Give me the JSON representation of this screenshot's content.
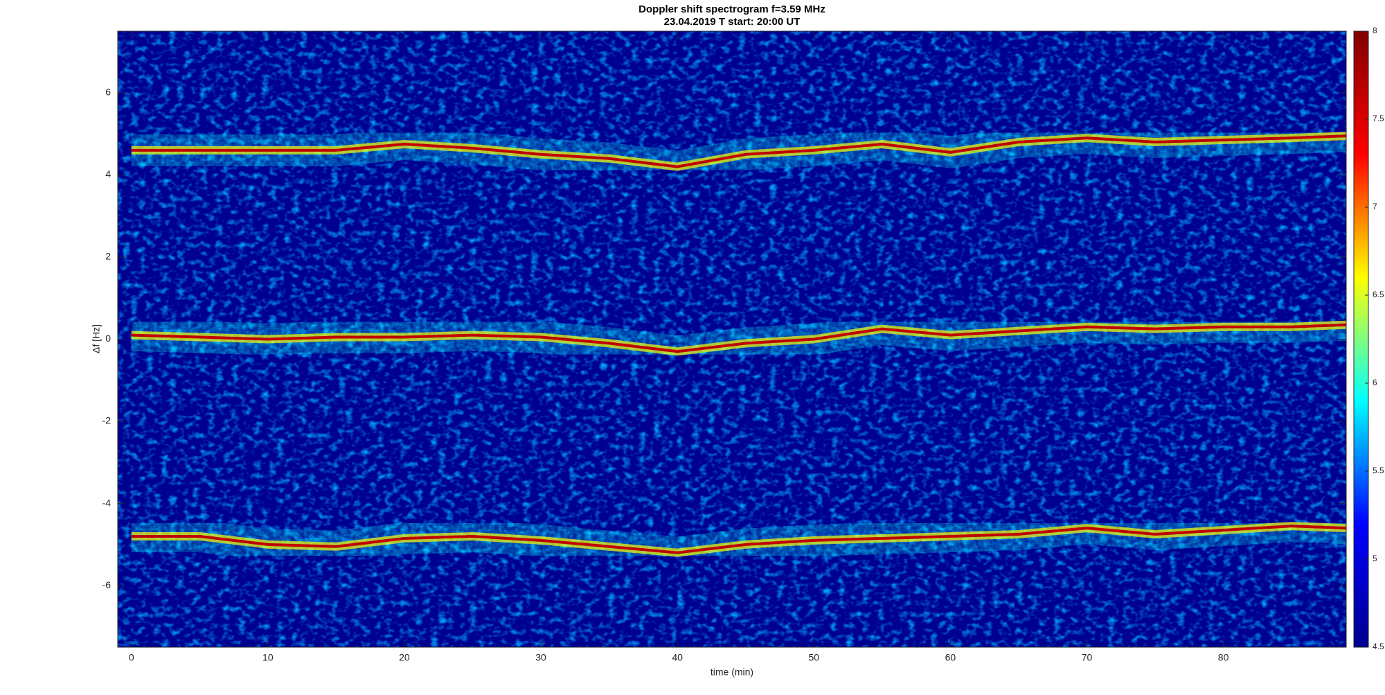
{
  "chart_data": {
    "type": "spectrogram",
    "title": "Doppler shift spectrogram f=3.59 MHz",
    "subtitle": "23.04.2019   T start: 20:00 UT",
    "x_label": "time (min)",
    "y_label": "Δf [Hz]",
    "x": [
      0,
      5,
      10,
      15,
      20,
      25,
      30,
      35,
      40,
      45,
      50,
      55,
      60,
      65,
      70,
      75,
      80,
      85,
      89
    ],
    "series": [
      {
        "name": "upper trace",
        "color": "#c00000",
        "values": [
          4.6,
          4.6,
          4.6,
          4.6,
          4.75,
          4.65,
          4.5,
          4.4,
          4.2,
          4.5,
          4.6,
          4.75,
          4.55,
          4.8,
          4.9,
          4.8,
          4.85,
          4.9,
          4.95
        ]
      },
      {
        "name": "middle trace",
        "color": "#c00000",
        "values": [
          0.1,
          0.05,
          0,
          0.05,
          0.05,
          0.1,
          0.05,
          -0.1,
          -0.3,
          -0.1,
          0,
          0.25,
          0.1,
          0.2,
          0.3,
          0.25,
          0.3,
          0.3,
          0.35
        ]
      },
      {
        "name": "lower trace",
        "color": "#c00000",
        "values": [
          -4.8,
          -4.8,
          -5.0,
          -5.05,
          -4.85,
          -4.8,
          -4.9,
          -5.05,
          -5.2,
          -5.0,
          -4.9,
          -4.85,
          -4.8,
          -4.75,
          -4.6,
          -4.75,
          -4.65,
          -4.55,
          -4.6
        ]
      }
    ],
    "xlim": [
      -1,
      89
    ],
    "xticks": [
      0,
      10,
      20,
      30,
      40,
      50,
      60,
      70,
      80
    ],
    "ylim": [
      -7.5,
      7.5
    ],
    "yticks": [
      -6,
      -4,
      -2,
      0,
      2,
      4,
      6
    ],
    "colormap": "jet",
    "clim": [
      4.5,
      8
    ],
    "cticks": [
      4.5,
      5,
      5.5,
      6,
      6.5,
      7,
      7.5,
      8
    ]
  }
}
